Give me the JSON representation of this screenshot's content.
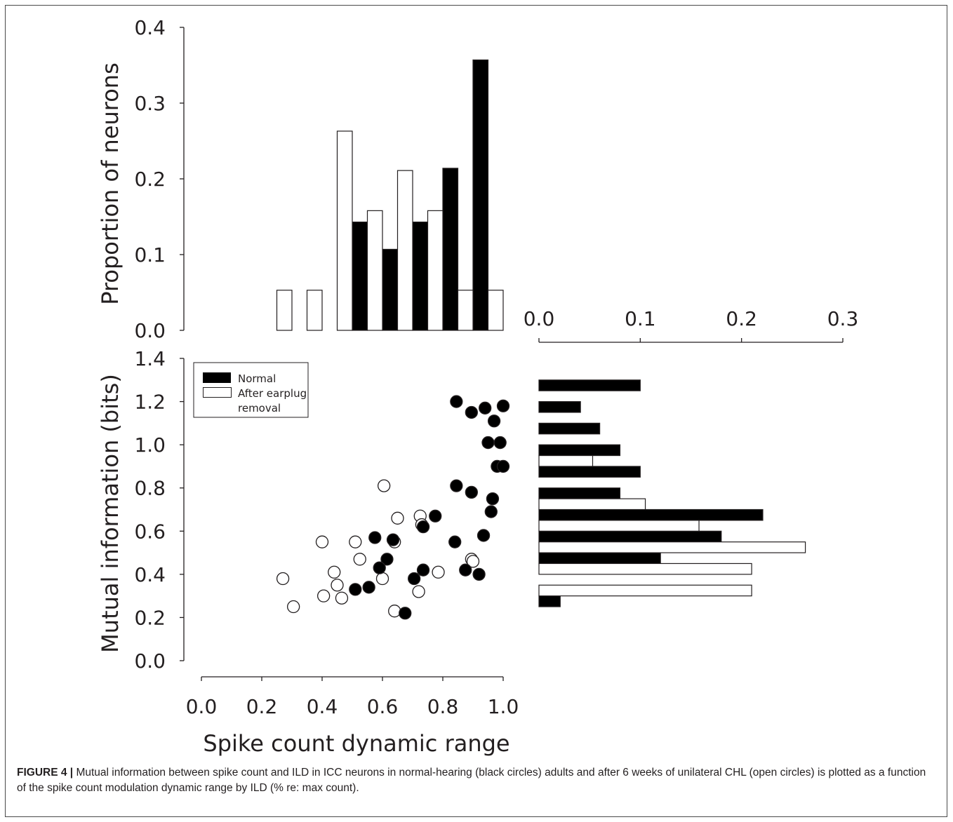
{
  "chart_data": [
    {
      "type": "bar",
      "panel": "top-histogram",
      "ylabel": "Proportion of neurons",
      "ylim": [
        0.0,
        0.4
      ],
      "yticks": [
        "0.0",
        "0.1",
        "0.2",
        "0.3",
        "0.4"
      ],
      "shared_x_axis": "Spike count dynamic range",
      "series": [
        {
          "name": "Normal",
          "color": "#000000",
          "bins": [
            [
              0.525,
              0.143
            ],
            [
              0.625,
              0.107
            ],
            [
              0.725,
              0.143
            ],
            [
              0.825,
              0.214
            ],
            [
              0.925,
              0.357
            ]
          ]
        },
        {
          "name": "After earplug removal",
          "color": "#ffffff",
          "bins": [
            [
              0.275,
              0.053
            ],
            [
              0.375,
              0.053
            ],
            [
              0.475,
              0.263
            ],
            [
              0.575,
              0.158
            ],
            [
              0.675,
              0.211
            ],
            [
              0.775,
              0.158
            ],
            [
              0.875,
              0.053
            ],
            [
              0.975,
              0.053
            ]
          ]
        }
      ]
    },
    {
      "type": "scatter",
      "panel": "main-scatter",
      "xlabel": "Spike count dynamic range",
      "ylabel": "Mutual information (bits)",
      "xlim": [
        0.0,
        1.0
      ],
      "ylim": [
        0.0,
        1.4
      ],
      "xticks": [
        "0.0",
        "0.2",
        "0.4",
        "0.6",
        "0.8",
        "1.0"
      ],
      "yticks": [
        "0.0",
        "0.2",
        "0.4",
        "0.6",
        "0.8",
        "1.0",
        "1.2",
        "1.4"
      ],
      "legend": {
        "position": "top-left",
        "entries": [
          "Normal",
          "After earplug removal"
        ]
      },
      "series": [
        {
          "name": "Normal",
          "marker": "filled-circle",
          "color": "#000000",
          "points": [
            [
              0.845,
              1.2
            ],
            [
              0.895,
              1.15
            ],
            [
              0.94,
              1.17
            ],
            [
              1.0,
              1.18
            ],
            [
              0.97,
              1.11
            ],
            [
              0.95,
              1.01
            ],
            [
              0.99,
              1.01
            ],
            [
              0.98,
              0.9
            ],
            [
              1.0,
              0.9
            ],
            [
              0.845,
              0.81
            ],
            [
              0.895,
              0.78
            ],
            [
              0.965,
              0.75
            ],
            [
              0.96,
              0.69
            ],
            [
              0.775,
              0.67
            ],
            [
              0.735,
              0.62
            ],
            [
              0.575,
              0.57
            ],
            [
              0.635,
              0.56
            ],
            [
              0.84,
              0.55
            ],
            [
              0.935,
              0.58
            ],
            [
              0.615,
              0.47
            ],
            [
              0.59,
              0.43
            ],
            [
              0.735,
              0.42
            ],
            [
              0.705,
              0.38
            ],
            [
              0.875,
              0.42
            ],
            [
              0.92,
              0.4
            ],
            [
              0.555,
              0.34
            ],
            [
              0.51,
              0.33
            ],
            [
              0.675,
              0.22
            ]
          ]
        },
        {
          "name": "After earplug removal",
          "marker": "open-circle",
          "color": "#ffffff",
          "points": [
            [
              0.605,
              0.81
            ],
            [
              0.65,
              0.66
            ],
            [
              0.725,
              0.67
            ],
            [
              0.73,
              0.63
            ],
            [
              0.4,
              0.55
            ],
            [
              0.51,
              0.55
            ],
            [
              0.64,
              0.55
            ],
            [
              0.525,
              0.47
            ],
            [
              0.44,
              0.41
            ],
            [
              0.45,
              0.35
            ],
            [
              0.6,
              0.38
            ],
            [
              0.785,
              0.41
            ],
            [
              0.895,
              0.47
            ],
            [
              0.9,
              0.46
            ],
            [
              0.27,
              0.38
            ],
            [
              0.405,
              0.3
            ],
            [
              0.465,
              0.29
            ],
            [
              0.305,
              0.25
            ],
            [
              0.64,
              0.23
            ],
            [
              0.72,
              0.32
            ]
          ]
        }
      ]
    },
    {
      "type": "bar",
      "orientation": "horizontal",
      "panel": "right-histogram",
      "xlim": [
        0.0,
        0.3
      ],
      "xticks": [
        "0.0",
        "0.1",
        "0.2",
        "0.3"
      ],
      "shared_y_axis": "Mutual information (bits)",
      "series": [
        {
          "name": "Normal",
          "color": "#000000",
          "bins": [
            [
              0.25,
              0.021
            ],
            [
              0.45,
              0.12
            ],
            [
              0.55,
              0.18
            ],
            [
              0.65,
              0.221
            ],
            [
              0.75,
              0.08
            ],
            [
              0.85,
              0.1
            ],
            [
              0.95,
              0.08
            ],
            [
              1.05,
              0.06
            ],
            [
              1.15,
              0.041
            ],
            [
              1.25,
              0.1
            ]
          ]
        },
        {
          "name": "After earplug removal",
          "color": "#ffffff",
          "bins": [
            [
              0.35,
              0.21
            ],
            [
              0.45,
              0.21
            ],
            [
              0.55,
              0.263
            ],
            [
              0.65,
              0.158
            ],
            [
              0.75,
              0.105
            ],
            [
              0.95,
              0.053
            ]
          ]
        }
      ]
    }
  ],
  "legend": {
    "normal_label": "Normal",
    "after_label_line1": "After earplug",
    "after_label_line2": "removal"
  },
  "axes": {
    "top_ylabel": "Proportion of neurons",
    "main_ylabel": "Mutual information (bits)",
    "main_xlabel": "Spike count dynamic range"
  },
  "caption": {
    "label": "FIGURE 4 |",
    "text": " Mutual information between spike count and ILD in ICC neurons in normal-hearing (black circles) adults and after 6 weeks of unilateral CHL (open circles) is plotted as a function of the spike count modulation dynamic range by ILD (% re: max count)."
  }
}
